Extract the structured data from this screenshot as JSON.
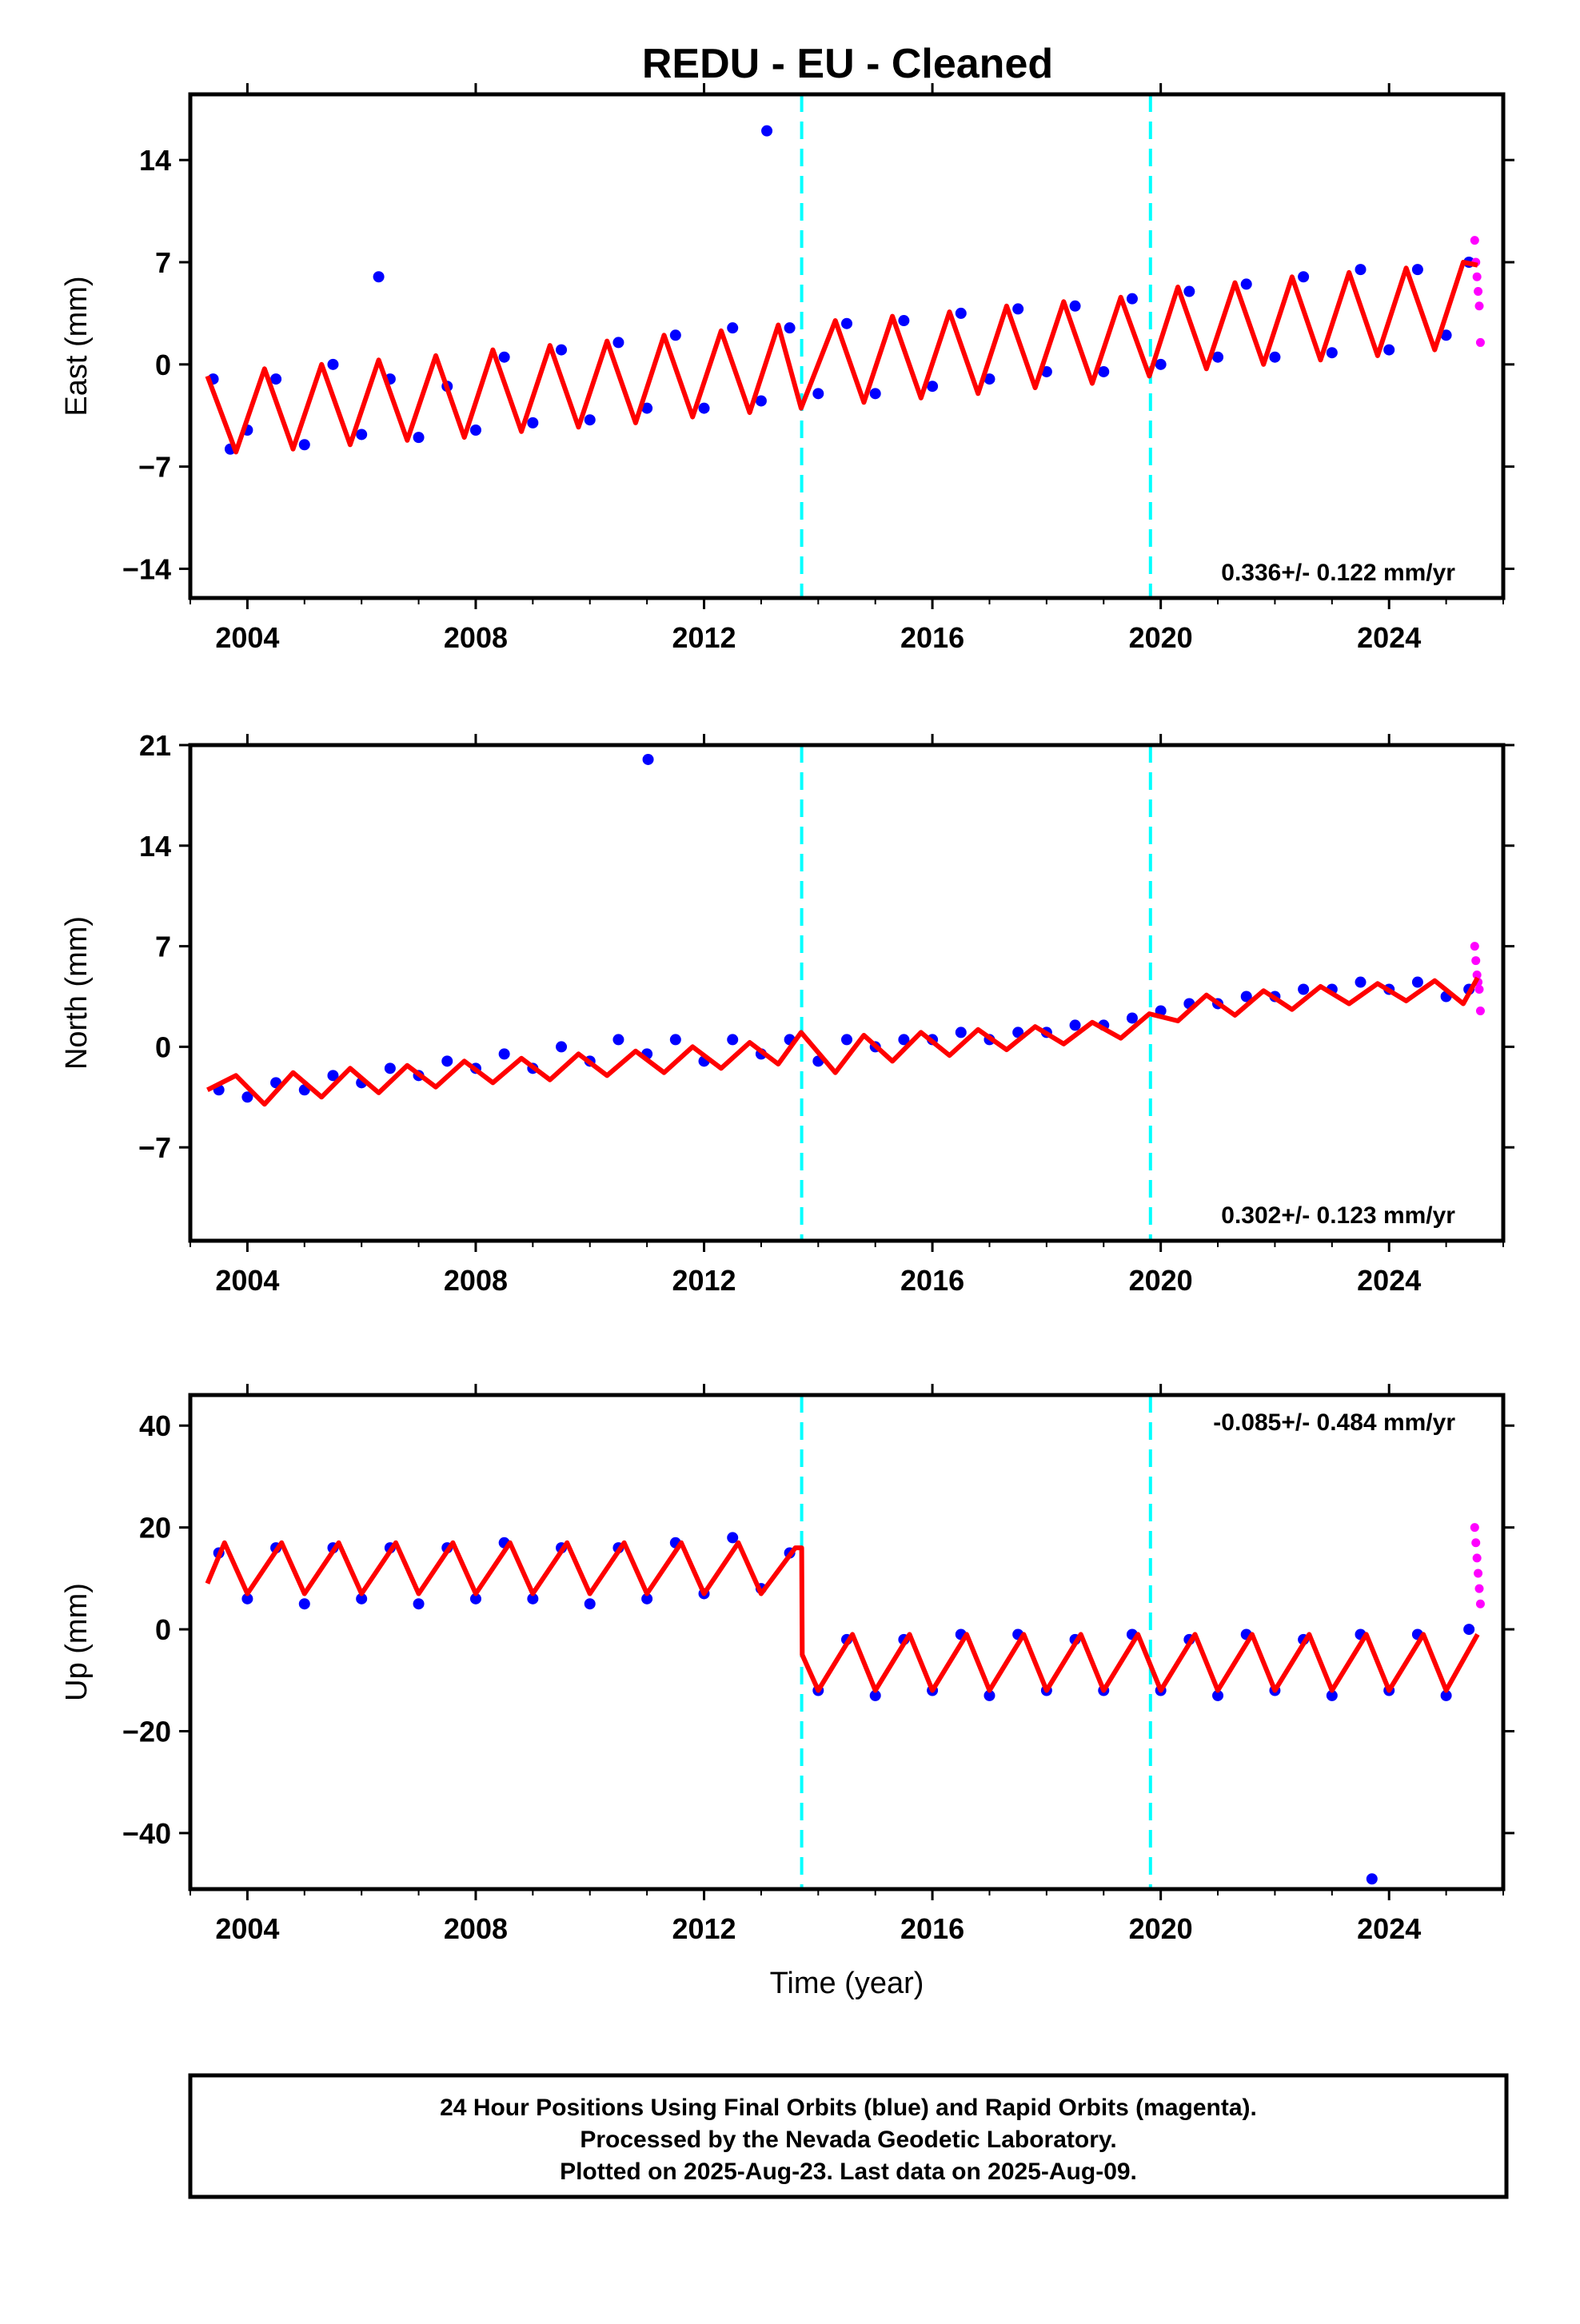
{
  "title": "REDU  - EU - Cleaned",
  "chart_data": [
    {
      "type": "scatter",
      "panel": "east",
      "ylabel": "East (mm)",
      "xlabel": "",
      "xlim": [
        2003.0,
        2026.0
      ],
      "ylim": [
        -16.0,
        18.5
      ],
      "yticks": [
        -14,
        -7,
        0,
        7,
        14
      ],
      "ytick_labels": [
        "−14",
        "−7",
        "0",
        "7",
        "14"
      ],
      "xticks": [
        2004,
        2008,
        2012,
        2016,
        2020,
        2024
      ],
      "xtick_labels": [
        "2004",
        "2008",
        "2012",
        "2016",
        "2020",
        "2024"
      ],
      "rate_text": "0.336+/- 0.122 mm/yr",
      "rate_position": "bottom-right",
      "offsets": [
        2013.71,
        2019.82
      ],
      "colors": {
        "final": "#0000ff",
        "rapid": "#ff00ff",
        "model": "#ff0000",
        "offset": "#00ffff"
      },
      "series": [
        {
          "name": "Final Orbits (blue)",
          "kind": "points",
          "x": [
            2003.4,
            2003.7,
            2004.0,
            2004.5,
            2005.0,
            2005.5,
            2006.0,
            2006.3,
            2006.5,
            2007.0,
            2007.5,
            2008.0,
            2008.5,
            2009.0,
            2009.5,
            2010.0,
            2010.5,
            2011.0,
            2011.5,
            2012.0,
            2012.5,
            2013.0,
            2013.1,
            2013.5,
            2014.0,
            2014.5,
            2015.0,
            2015.5,
            2016.0,
            2016.5,
            2017.0,
            2017.5,
            2018.0,
            2018.5,
            2019.0,
            2019.5,
            2020.0,
            2020.5,
            2021.0,
            2021.5,
            2022.0,
            2022.5,
            2023.0,
            2023.5,
            2024.0,
            2024.5,
            2025.0,
            2025.4
          ],
          "y": [
            -1.0,
            -5.8,
            -4.5,
            -1.0,
            -5.5,
            0.0,
            -4.8,
            6.0,
            -1.0,
            -5.0,
            -1.5,
            -4.5,
            0.5,
            -4.0,
            1.0,
            -3.8,
            1.5,
            -3.0,
            2.0,
            -3.0,
            2.5,
            -2.5,
            16.0,
            2.5,
            -2.0,
            2.8,
            -2.0,
            3.0,
            -1.5,
            3.5,
            -1.0,
            3.8,
            -0.5,
            4.0,
            -0.5,
            4.5,
            0.0,
            5.0,
            0.5,
            5.5,
            0.5,
            6.0,
            0.8,
            6.5,
            1.0,
            6.5,
            2.0,
            7.0
          ]
        },
        {
          "name": "Rapid Orbits (magenta)",
          "kind": "points",
          "x": [
            2025.5,
            2025.52,
            2025.54,
            2025.56,
            2025.58,
            2025.6
          ],
          "y": [
            8.5,
            7.0,
            6.0,
            5.0,
            4.0,
            1.5
          ]
        },
        {
          "name": "Model",
          "kind": "line",
          "x": [
            2003.3,
            2003.8,
            2004.3,
            2004.8,
            2005.3,
            2005.8,
            2006.3,
            2006.8,
            2007.3,
            2007.8,
            2008.3,
            2008.8,
            2009.3,
            2009.8,
            2010.3,
            2010.8,
            2011.3,
            2011.8,
            2012.3,
            2012.8,
            2013.3,
            2013.7,
            2014.3,
            2014.8,
            2015.3,
            2015.8,
            2016.3,
            2016.8,
            2017.3,
            2017.8,
            2018.3,
            2018.8,
            2019.3,
            2019.8,
            2020.3,
            2020.8,
            2021.3,
            2021.8,
            2022.3,
            2022.8,
            2023.3,
            2023.8,
            2024.3,
            2024.8,
            2025.3,
            2025.55
          ],
          "y": [
            -0.8,
            -6.0,
            -0.3,
            -5.8,
            0.0,
            -5.5,
            0.3,
            -5.2,
            0.6,
            -5.0,
            1.0,
            -4.6,
            1.3,
            -4.3,
            1.6,
            -4.0,
            2.0,
            -3.6,
            2.3,
            -3.3,
            2.7,
            -3.0,
            3.0,
            -2.6,
            3.3,
            -2.3,
            3.6,
            -2.0,
            4.0,
            -1.6,
            4.3,
            -1.3,
            4.6,
            -0.8,
            5.3,
            -0.3,
            5.6,
            0.0,
            6.0,
            0.3,
            6.3,
            0.6,
            6.6,
            1.0,
            7.0,
            6.8
          ]
        }
      ]
    },
    {
      "type": "scatter",
      "panel": "north",
      "ylabel": "North (mm)",
      "xlabel": "",
      "xlim": [
        2003.0,
        2026.0
      ],
      "ylim": [
        -13.5,
        21.0
      ],
      "yticks": [
        -7,
        0,
        7,
        14,
        21
      ],
      "ytick_labels": [
        "−7",
        "0",
        "7",
        "14",
        "21"
      ],
      "xticks": [
        2004,
        2008,
        2012,
        2016,
        2020,
        2024
      ],
      "xtick_labels": [
        "2004",
        "2008",
        "2012",
        "2016",
        "2020",
        "2024"
      ],
      "rate_text": "0.302+/- 0.123 mm/yr",
      "rate_position": "bottom-right",
      "offsets": [
        2013.71,
        2019.82
      ],
      "colors": {
        "final": "#0000ff",
        "rapid": "#ff00ff",
        "model": "#ff0000",
        "offset": "#00ffff"
      },
      "series": [
        {
          "name": "Final Orbits (blue)",
          "kind": "points",
          "x": [
            2003.5,
            2004.0,
            2004.5,
            2005.0,
            2005.5,
            2006.0,
            2006.5,
            2007.0,
            2007.5,
            2008.0,
            2008.5,
            2009.0,
            2009.5,
            2010.0,
            2010.5,
            2011.0,
            2011.02,
            2011.5,
            2012.0,
            2012.5,
            2013.0,
            2013.5,
            2014.0,
            2014.5,
            2015.0,
            2015.5,
            2016.0,
            2016.5,
            2017.0,
            2017.5,
            2018.0,
            2018.5,
            2019.0,
            2019.5,
            2020.0,
            2020.5,
            2021.0,
            2021.5,
            2022.0,
            2022.5,
            2023.0,
            2023.5,
            2024.0,
            2024.5,
            2025.0,
            2025.4
          ],
          "y": [
            -3.0,
            -3.5,
            -2.5,
            -3.0,
            -2.0,
            -2.5,
            -1.5,
            -2.0,
            -1.0,
            -1.5,
            -0.5,
            -1.5,
            0.0,
            -1.0,
            0.5,
            -0.5,
            20.0,
            0.5,
            -1.0,
            0.5,
            -0.5,
            0.5,
            -1.0,
            0.5,
            0.0,
            0.5,
            0.5,
            1.0,
            0.5,
            1.0,
            1.0,
            1.5,
            1.5,
            2.0,
            2.5,
            3.0,
            3.0,
            3.5,
            3.5,
            4.0,
            4.0,
            4.5,
            4.0,
            4.5,
            3.5,
            4.0
          ]
        },
        {
          "name": "Rapid Orbits (magenta)",
          "kind": "points",
          "x": [
            2025.5,
            2025.52,
            2025.54,
            2025.56,
            2025.58,
            2025.6
          ],
          "y": [
            7.0,
            6.0,
            5.0,
            4.5,
            4.0,
            2.5
          ]
        },
        {
          "name": "Model",
          "kind": "line",
          "x": [
            2003.3,
            2003.8,
            2004.3,
            2004.8,
            2005.3,
            2005.8,
            2006.3,
            2006.8,
            2007.3,
            2007.8,
            2008.3,
            2008.8,
            2009.3,
            2009.8,
            2010.3,
            2010.8,
            2011.3,
            2011.8,
            2012.3,
            2012.8,
            2013.3,
            2013.7,
            2014.3,
            2014.8,
            2015.3,
            2015.8,
            2016.3,
            2016.8,
            2017.3,
            2017.8,
            2018.3,
            2018.8,
            2019.3,
            2019.8,
            2020.3,
            2020.8,
            2021.3,
            2021.8,
            2022.3,
            2022.8,
            2023.3,
            2023.8,
            2024.3,
            2024.8,
            2025.3,
            2025.55
          ],
          "y": [
            -3.0,
            -2.0,
            -4.0,
            -1.8,
            -3.5,
            -1.5,
            -3.2,
            -1.3,
            -2.8,
            -1.0,
            -2.5,
            -0.8,
            -2.3,
            -0.5,
            -2.0,
            -0.3,
            -1.8,
            0.0,
            -1.5,
            0.3,
            -1.2,
            1.0,
            -1.8,
            0.8,
            -1.0,
            1.0,
            -0.6,
            1.2,
            -0.2,
            1.4,
            0.2,
            1.7,
            0.6,
            2.3,
            1.8,
            3.6,
            2.2,
            3.9,
            2.6,
            4.2,
            3.0,
            4.4,
            3.2,
            4.6,
            3.0,
            4.8
          ]
        }
      ]
    },
    {
      "type": "scatter",
      "panel": "up",
      "ylabel": "Up (mm)",
      "xlabel": "Time (year)",
      "xlim": [
        2003.0,
        2026.0
      ],
      "ylim": [
        -51.0,
        46.0
      ],
      "yticks": [
        -40,
        -20,
        0,
        20,
        40
      ],
      "ytick_labels": [
        "−40",
        "−20",
        "0",
        "20",
        "40"
      ],
      "xticks": [
        2004,
        2008,
        2012,
        2016,
        2020,
        2024
      ],
      "xtick_labels": [
        "2004",
        "2008",
        "2012",
        "2016",
        "2020",
        "2024"
      ],
      "rate_text": "-0.085+/- 0.484 mm/yr",
      "rate_position": "top-right",
      "offsets": [
        2013.71,
        2019.82
      ],
      "colors": {
        "final": "#0000ff",
        "rapid": "#ff00ff",
        "model": "#ff0000",
        "offset": "#00ffff"
      },
      "series": [
        {
          "name": "Final Orbits (blue)",
          "kind": "points",
          "x": [
            2003.5,
            2004.0,
            2004.5,
            2005.0,
            2005.5,
            2006.0,
            2006.5,
            2007.0,
            2007.5,
            2008.0,
            2008.5,
            2009.0,
            2009.5,
            2010.0,
            2010.5,
            2011.0,
            2011.5,
            2012.0,
            2012.5,
            2013.0,
            2013.5,
            2014.0,
            2014.5,
            2015.0,
            2015.5,
            2016.0,
            2016.5,
            2017.0,
            2017.5,
            2018.0,
            2018.5,
            2019.0,
            2019.5,
            2020.0,
            2020.5,
            2021.0,
            2021.5,
            2022.0,
            2022.5,
            2023.0,
            2023.5,
            2023.7,
            2024.0,
            2024.5,
            2025.0,
            2025.4
          ],
          "y": [
            15.0,
            6.0,
            16.0,
            5.0,
            16.0,
            6.0,
            16.0,
            5.0,
            16.0,
            6.0,
            17.0,
            6.0,
            16.0,
            5.0,
            16.0,
            6.0,
            17.0,
            7.0,
            18.0,
            8.0,
            15.0,
            -12.0,
            -2.0,
            -13.0,
            -2.0,
            -12.0,
            -1.0,
            -13.0,
            -1.0,
            -12.0,
            -2.0,
            -12.0,
            -1.0,
            -12.0,
            -2.0,
            -13.0,
            -1.0,
            -12.0,
            -2.0,
            -13.0,
            -1.0,
            -49.0,
            -12.0,
            -1.0,
            -13.0,
            0.0
          ]
        },
        {
          "name": "Rapid Orbits (magenta)",
          "kind": "points",
          "x": [
            2025.5,
            2025.52,
            2025.54,
            2025.56,
            2025.58,
            2025.6
          ],
          "y": [
            20.0,
            17.0,
            14.0,
            11.0,
            8.0,
            5.0
          ]
        },
        {
          "name": "Model",
          "kind": "line",
          "x": [
            2003.3,
            2003.6,
            2004.0,
            2004.6,
            2005.0,
            2005.6,
            2006.0,
            2006.6,
            2007.0,
            2007.6,
            2008.0,
            2008.6,
            2009.0,
            2009.6,
            2010.0,
            2010.6,
            2011.0,
            2011.6,
            2012.0,
            2012.6,
            2013.0,
            2013.6,
            2013.71,
            2013.72,
            2014.0,
            2014.6,
            2015.0,
            2015.6,
            2016.0,
            2016.6,
            2017.0,
            2017.6,
            2018.0,
            2018.6,
            2019.0,
            2019.6,
            2020.0,
            2020.6,
            2021.0,
            2021.6,
            2022.0,
            2022.6,
            2023.0,
            2023.6,
            2024.0,
            2024.6,
            2025.0,
            2025.55
          ],
          "y": [
            9.0,
            17.0,
            7.0,
            17.0,
            7.0,
            17.0,
            7.0,
            17.0,
            7.0,
            17.0,
            7.0,
            17.0,
            7.0,
            17.0,
            7.0,
            17.0,
            7.0,
            17.0,
            7.0,
            17.0,
            7.0,
            16.0,
            16.0,
            -5.0,
            -12.0,
            -1.0,
            -12.0,
            -1.0,
            -12.0,
            -1.0,
            -12.0,
            -1.0,
            -12.0,
            -1.0,
            -12.0,
            -1.0,
            -12.0,
            -1.0,
            -12.0,
            -1.0,
            -12.0,
            -1.0,
            -12.0,
            -1.0,
            -12.0,
            -1.0,
            -12.0,
            -1.0
          ]
        }
      ]
    }
  ],
  "footer": {
    "line1": "24 Hour Positions Using Final Orbits (blue) and Rapid Orbits (magenta).",
    "line2": "Processed by the Nevada Geodetic Laboratory.",
    "line3": "Plotted on 2025-Aug-23. Last data on 2025-Aug-09."
  }
}
